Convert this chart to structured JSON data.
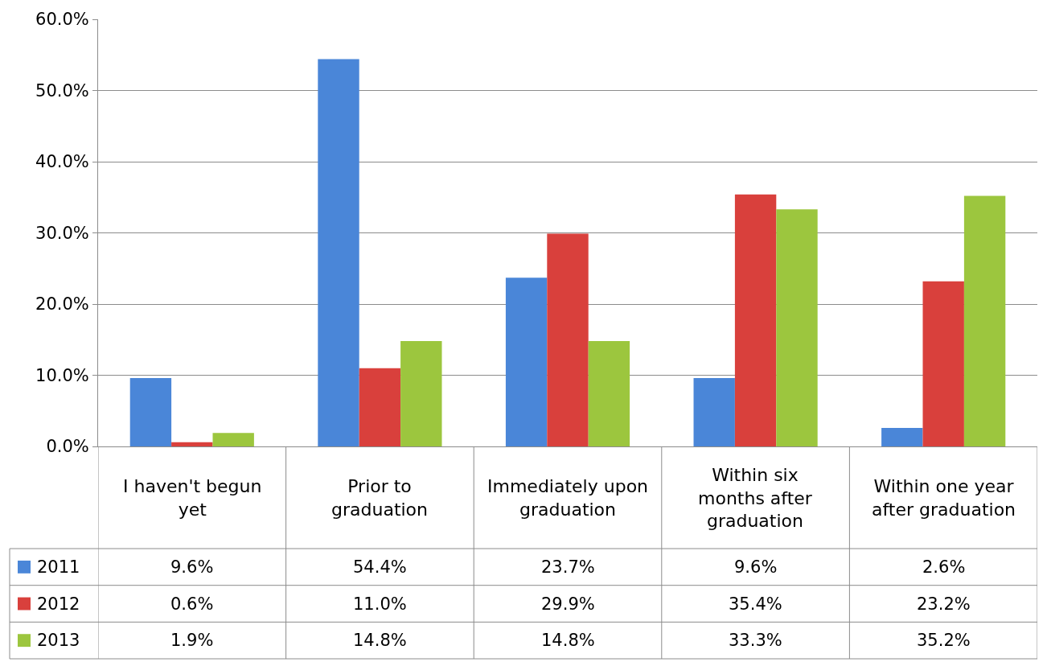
{
  "chart_data": {
    "type": "bar",
    "categories": [
      "I haven't begun yet",
      "Prior to graduation",
      "Immediately upon graduation",
      "Within six months after graduation",
      "Within one year after graduation"
    ],
    "series": [
      {
        "name": "2011",
        "color": "#4a86d8",
        "values": [
          9.6,
          54.4,
          23.7,
          9.6,
          2.6
        ],
        "value_labels": [
          "9.6%",
          "54.4%",
          "23.7%",
          "9.6%",
          "2.6%"
        ]
      },
      {
        "name": "2012",
        "color": "#d9403c",
        "values": [
          0.6,
          11.0,
          29.9,
          35.4,
          23.2
        ],
        "value_labels": [
          "0.6%",
          "11.0%",
          "29.9%",
          "35.4%",
          "23.2%"
        ]
      },
      {
        "name": "2013",
        "color": "#9cc63e",
        "values": [
          1.9,
          14.8,
          14.8,
          33.3,
          35.2
        ],
        "value_labels": [
          "1.9%",
          "14.8%",
          "14.8%",
          "33.3%",
          "35.2%"
        ]
      }
    ],
    "ylim": [
      0,
      60
    ],
    "yticks": [
      {
        "value": 0,
        "label": "0.0%"
      },
      {
        "value": 10,
        "label": "10.0%"
      },
      {
        "value": 20,
        "label": "20.0%"
      },
      {
        "value": 30,
        "label": "30.0%"
      },
      {
        "value": 40,
        "label": "40.0%"
      },
      {
        "value": 50,
        "label": "50.0%"
      },
      {
        "value": 60,
        "label": "60.0%"
      }
    ],
    "grid": "y",
    "legend": "bottom left"
  }
}
